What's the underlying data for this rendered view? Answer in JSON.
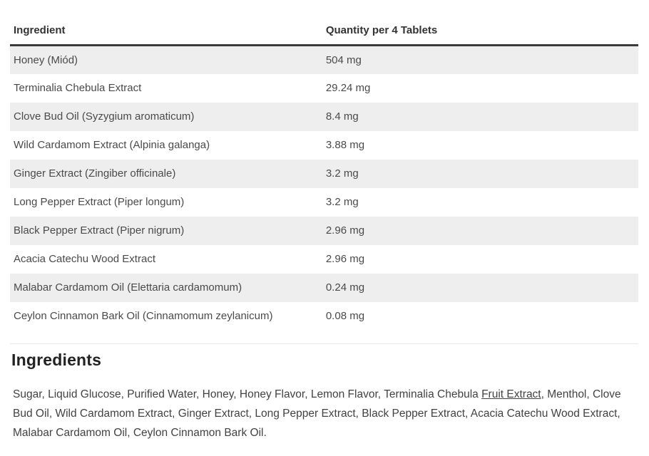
{
  "table": {
    "columns": [
      "Ingredient",
      "Quantity per 4 Tablets"
    ],
    "rows": [
      {
        "ingredient": "Honey (Miód)",
        "quantity": "504 mg"
      },
      {
        "ingredient": "Terminalia Chebula Extract",
        "quantity": "29.24 mg"
      },
      {
        "ingredient": "Clove Bud Oil (Syzygium aromaticum)",
        "quantity": "8.4 mg"
      },
      {
        "ingredient": "Wild Cardamom Extract (Alpinia galanga)",
        "quantity": "3.88 mg"
      },
      {
        "ingredient": "Ginger Extract (Zingiber officinale)",
        "quantity": "3.2 mg"
      },
      {
        "ingredient": "Long Pepper Extract (Piper longum)",
        "quantity": "3.2 mg"
      },
      {
        "ingredient": "Black Pepper Extract (Piper nigrum)",
        "quantity": "2.96 mg"
      },
      {
        "ingredient": "Acacia Catechu Wood Extract",
        "quantity": "2.96 mg"
      },
      {
        "ingredient": "Malabar Cardamom Oil (Elettaria cardamomum)",
        "quantity": "0.24 mg"
      },
      {
        "ingredient": "Ceylon Cinnamon Bark Oil (Cinnamomum zeylanicum)",
        "quantity": "0.08 mg"
      }
    ]
  },
  "ingredients_section": {
    "heading": "Ingredients",
    "text_before_link": "Sugar, Liquid Glucose, Purified Water, Honey, Honey Flavor, Lemon Flavor, Terminalia Chebula ",
    "link_text": "Fruit Extract",
    "text_after_link": ", Menthol, Clove Bud Oil, Wild Cardamom Extract, Ginger Extract, Long Pepper Extract, Black Pepper Extract, Acacia Catechu Wood Extract, Malabar Cardamom Oil, Ceylon Cinnamon Bark Oil."
  },
  "colors": {
    "row_stripe": "#eeeeee",
    "header_border": "#3a3a3a",
    "body_text": "#4a4a4a",
    "heading_text": "#222222",
    "divider": "#e9e9e9"
  }
}
